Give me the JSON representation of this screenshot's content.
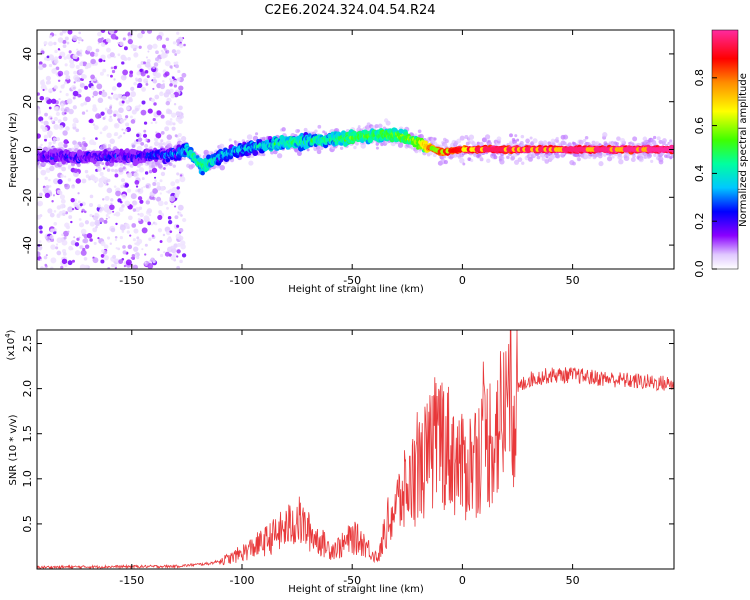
{
  "title": "C2E6.2024.324.04.54.R24",
  "chart_data": [
    {
      "type": "heatmap",
      "name": "spectrogram",
      "xlabel": "Height of straight line (km)",
      "ylabel": "Frequency (Hz)",
      "xlim": [
        -193,
        96
      ],
      "ylim": [
        -50,
        50
      ],
      "xticks": [
        -150,
        -100,
        -50,
        0,
        50
      ],
      "xtick_labels": [
        "-150",
        "-100",
        "-50",
        "0",
        "50"
      ],
      "yticks": [
        -40,
        -20,
        0,
        20,
        40
      ],
      "ytick_labels": [
        "-40",
        "-20",
        "0",
        "20",
        "40"
      ],
      "ridge": {
        "x": [
          -193,
          -150,
          -130,
          -125,
          -118,
          -110,
          -100,
          -80,
          -60,
          -50,
          -40,
          -30,
          -20,
          -15,
          -10,
          0,
          10,
          20,
          96
        ],
        "frequency": [
          -3,
          -3,
          -2,
          0,
          -7,
          -3,
          0,
          3,
          4,
          5,
          6,
          6,
          3,
          1,
          -1,
          0,
          0,
          0,
          0
        ],
        "amplitude": [
          0.2,
          0.2,
          0.3,
          0.4,
          0.5,
          0.35,
          0.35,
          0.45,
          0.45,
          0.55,
          0.5,
          0.55,
          0.6,
          0.8,
          0.85,
          0.9,
          0.95,
          0.95,
          1.0
        ]
      },
      "noise_region_x": [
        -193,
        -126
      ]
    },
    {
      "type": "line",
      "name": "snr",
      "xlabel": "Height of straight line (km)",
      "ylabel": "SNR (10 * v/v)",
      "scale_label": "(x10",
      "scale_exponent": "4",
      "color": "#e8383a",
      "xlim": [
        -193,
        96
      ],
      "ylim": [
        0,
        2.65
      ],
      "xticks": [
        -150,
        -100,
        -50,
        0,
        50
      ],
      "xtick_labels": [
        "-150",
        "-100",
        "-50",
        "0",
        "50"
      ],
      "yticks": [
        0.5,
        1.0,
        1.5,
        2.0,
        2.5
      ],
      "ytick_labels": [
        "0.5",
        "1.0",
        "1.5",
        "2.0",
        "2.5"
      ],
      "envelope": {
        "x": [
          -193,
          -130,
          -115,
          -105,
          -100,
          -90,
          -80,
          -75,
          -70,
          -65,
          -60,
          -55,
          -50,
          -45,
          -40,
          -38,
          -35,
          -30,
          -25,
          -20,
          -15,
          -10,
          -5,
          0,
          5,
          10,
          15,
          20,
          25,
          30,
          40,
          50,
          60,
          70,
          80,
          96
        ],
        "snr": [
          0.02,
          0.03,
          0.06,
          0.12,
          0.18,
          0.3,
          0.45,
          0.55,
          0.42,
          0.32,
          0.22,
          0.25,
          0.35,
          0.3,
          0.15,
          0.12,
          0.45,
          0.7,
          0.9,
          1.1,
          1.25,
          1.5,
          1.3,
          1.1,
          1.2,
          1.4,
          1.5,
          1.8,
          2.0,
          2.1,
          2.15,
          2.15,
          2.12,
          2.1,
          2.08,
          2.05
        ]
      }
    }
  ],
  "colorbar": {
    "label": "Normalized spectral amplitude",
    "range": [
      0,
      1
    ],
    "ticks": [
      0.0,
      0.2,
      0.4,
      0.6,
      0.8
    ],
    "tick_labels": [
      "0.0",
      "0.2",
      "0.4",
      "0.6",
      "0.8"
    ]
  }
}
